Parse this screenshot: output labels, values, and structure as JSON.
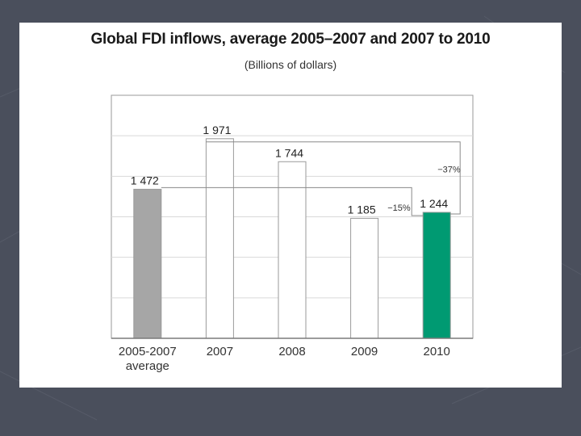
{
  "colors": {
    "slide_background": "#4a4f5c",
    "card": "#ffffff",
    "bar_average": "#a6a6a6",
    "bar_year": "#ffffff",
    "bar_2010": "#009a72",
    "bar_outline": "#9a9a9a"
  },
  "chart_data": {
    "type": "bar",
    "title": "Global FDI inflows, average 2005–2007 and 2007 to 2010",
    "subtitle": "(Billions of dollars)",
    "categories": [
      [
        "2005-2007",
        "average"
      ],
      [
        "2007"
      ],
      [
        "2008"
      ],
      [
        "2009"
      ],
      [
        "2010"
      ]
    ],
    "values": [
      1472,
      1971,
      1744,
      1185,
      1244
    ],
    "data_labels": [
      "1 472",
      "1 971",
      "1 744",
      "1 185",
      "1 244"
    ],
    "bar_colors": [
      "#a6a6a6",
      "#ffffff",
      "#ffffff",
      "#ffffff",
      "#009a72"
    ],
    "ylim": [
      0,
      2400
    ],
    "grid": true,
    "xlabel": "",
    "ylabel": "",
    "annotations": [
      {
        "text": "−37%",
        "from_category": 1,
        "to_category": 4
      },
      {
        "text": "−15%",
        "from_category": 0,
        "to_category": 4
      }
    ]
  }
}
